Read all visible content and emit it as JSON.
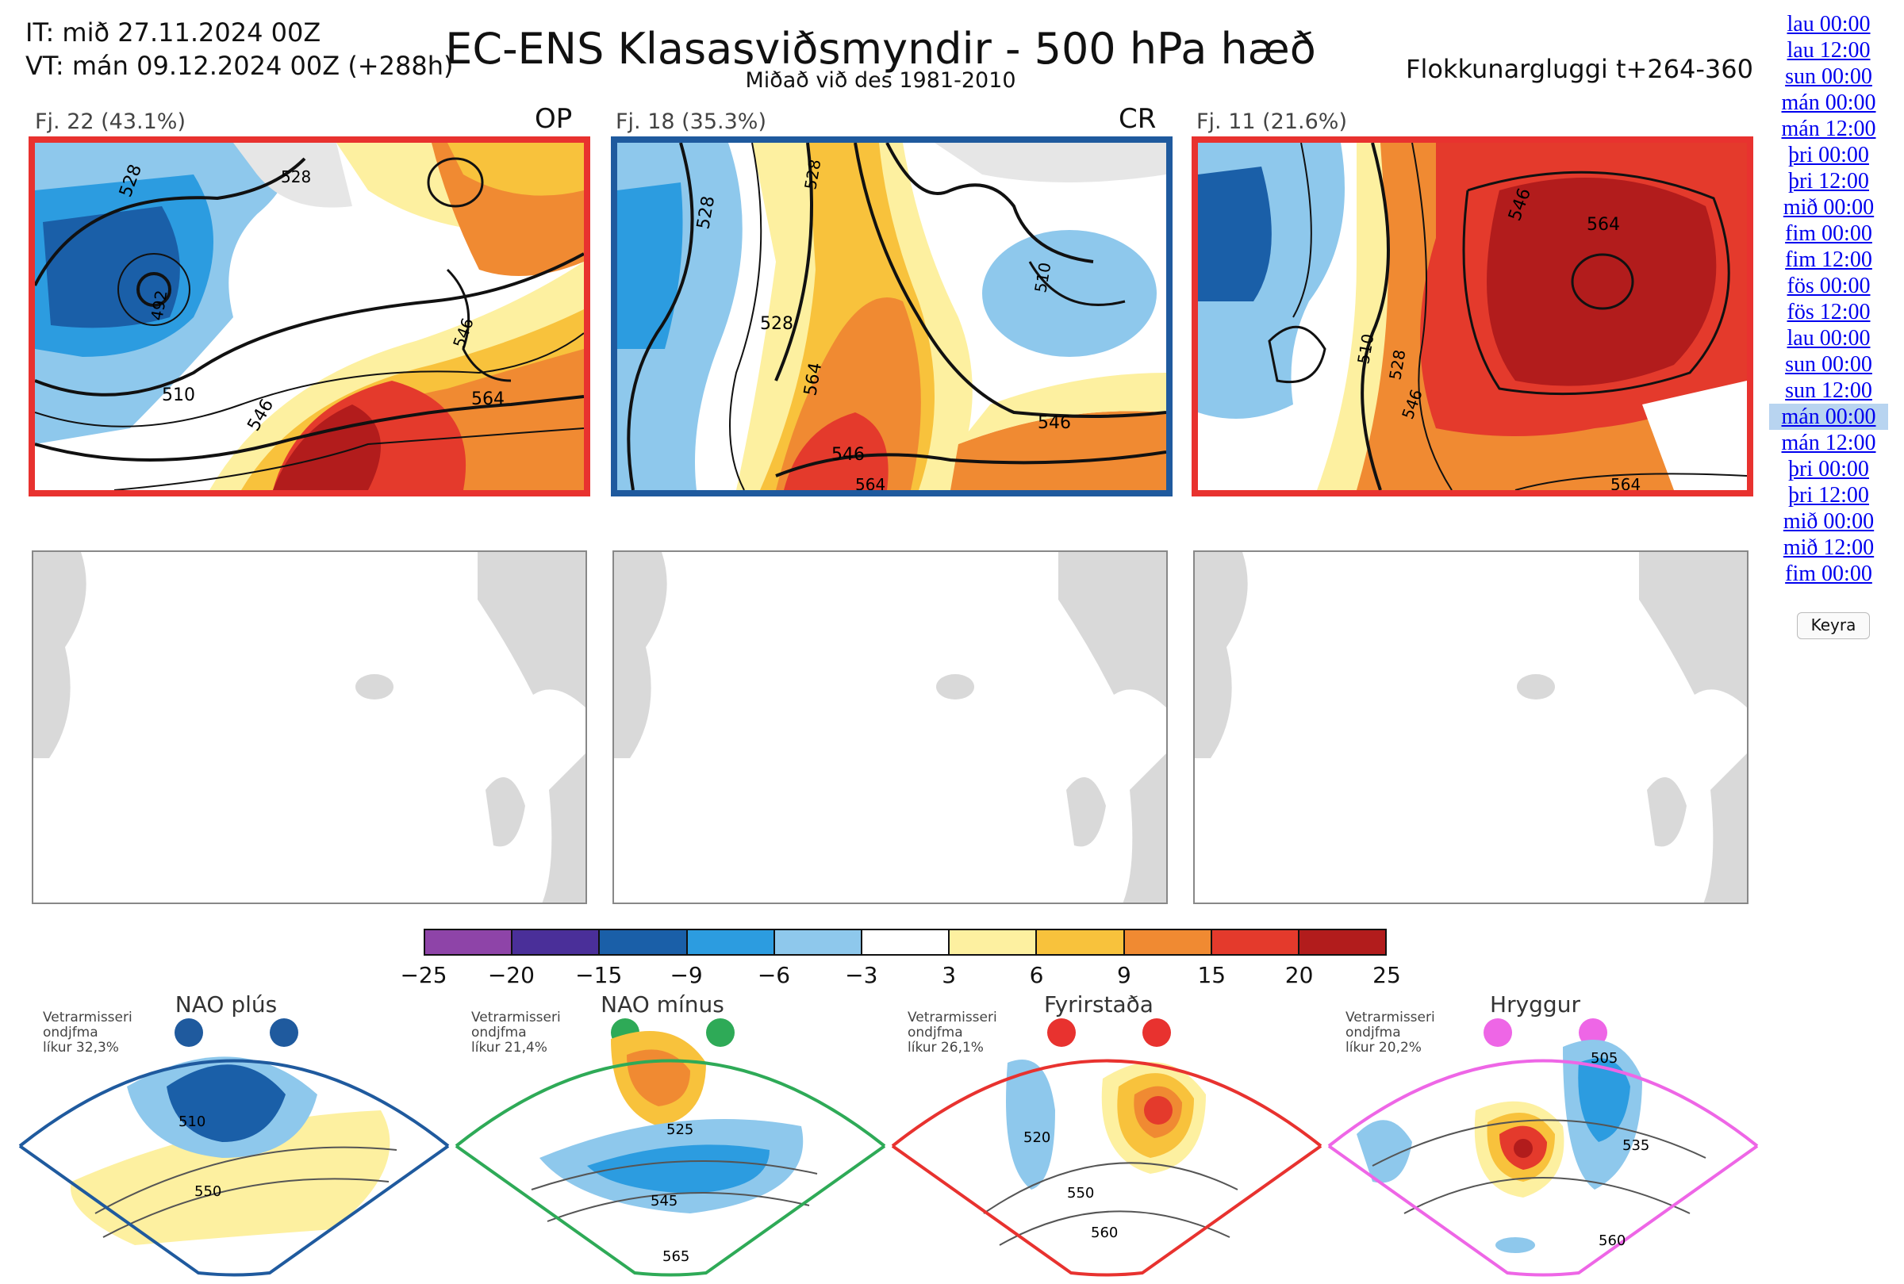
{
  "header": {
    "it": "IT: mið 27.11.2024 00Z",
    "vt": "VT: mán 09.12.2024 00Z  (+288h)",
    "title": "EC-ENS Klasasviðsmyndir - 500 hPa hæð",
    "subtitle": "Miðað við des 1981-2010",
    "window": "Flokkunargluggi t+264-360"
  },
  "clusters": [
    {
      "label": "Fj. 22 (43.1%)",
      "code": "OP",
      "border_color": "#e8322f",
      "contour_labels": [
        "510",
        "528",
        "546",
        "564",
        "492",
        "546",
        "528"
      ]
    },
    {
      "label": "Fj. 18 (35.3%)",
      "code": "CR",
      "border_color": "#1f5a9e",
      "contour_labels": [
        "528",
        "528",
        "546",
        "564",
        "528",
        "546",
        "510",
        "564"
      ]
    },
    {
      "label": "Fj. 11 (21.6%)",
      "code": "",
      "border_color": "#e8322f",
      "contour_labels": [
        "546",
        "564",
        "510",
        "528",
        "546",
        "564"
      ]
    }
  ],
  "colorbar": {
    "colors": [
      "#8e44a8",
      "#4a2f99",
      "#1a5fa8",
      "#2c9ce0",
      "#8ec8ec",
      "#ffffff",
      "#fdf0a0",
      "#f8c23c",
      "#f08a32",
      "#e43a2c",
      "#b21c1c"
    ],
    "ticks": [
      "−25",
      "−20",
      "−15",
      "−9",
      "−6",
      "−3",
      "3",
      "6",
      "9",
      "15",
      "20",
      "25"
    ]
  },
  "regimes": [
    {
      "title": "NAO plús",
      "info": [
        "Vetrarmisseri",
        "ondjfma",
        "líkur 32,3%"
      ],
      "color": "#1f5a9e",
      "labels": [
        "510",
        "550"
      ]
    },
    {
      "title": "NAO mínus",
      "info": [
        "Vetrarmisseri",
        "ondjfma",
        "líkur 21,4%"
      ],
      "color": "#2eaa57",
      "labels": [
        "525",
        "545",
        "565"
      ]
    },
    {
      "title": "Fyrirstaða",
      "info": [
        "Vetrarmisseri",
        "ondjfma",
        "líkur 26,1%"
      ],
      "color": "#e8322f",
      "labels": [
        "520",
        "550",
        "560"
      ]
    },
    {
      "title": "Hryggur",
      "info": [
        "Vetrarmisseri",
        "ondjfma",
        "líkur 20,2%"
      ],
      "color": "#ee66e6",
      "labels": [
        "505",
        "535",
        "560"
      ]
    }
  ],
  "nav": {
    "links": [
      "lau 00:00",
      "lau 12:00",
      "sun 00:00",
      "mán 00:00",
      "mán 12:00",
      "þri 00:00",
      "þri 12:00",
      "mið 00:00",
      "fim 00:00",
      "fim 12:00",
      "fös 00:00",
      "fös 12:00",
      "lau 00:00",
      "sun 00:00",
      "sun 12:00",
      "mán 00:00",
      "mán 12:00",
      "þri 00:00",
      "þri 12:00",
      "mið 00:00",
      "mið 12:00",
      "fim 00:00"
    ],
    "active_index": 15,
    "run_label": "Keyra"
  }
}
